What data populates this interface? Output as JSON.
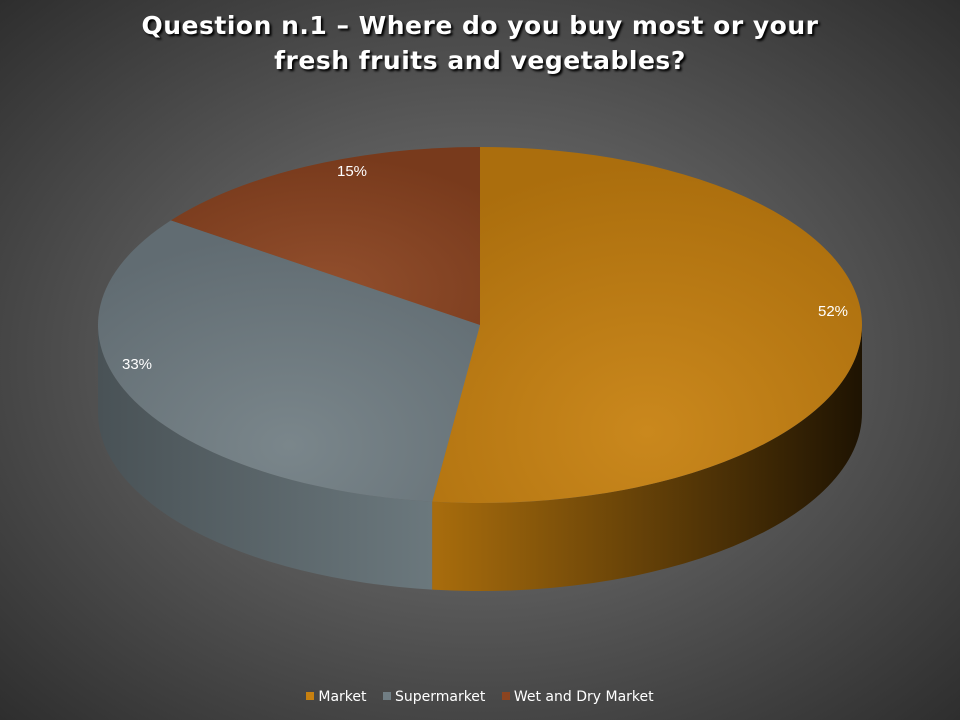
{
  "chart_data": {
    "type": "pie",
    "title_lines": [
      "Question n.1 – Where do you buy most or your",
      "fresh fruits and vegetables?"
    ],
    "categories": [
      "Market",
      "Supermarket",
      "Wet and Dry Market"
    ],
    "values": [
      52,
      33,
      15
    ],
    "data_labels": [
      "52%",
      "33%",
      "15%"
    ],
    "colors": [
      "#C7800F",
      "#717E84",
      "#8B4420"
    ],
    "legend_position": "bottom",
    "three_d": true
  }
}
